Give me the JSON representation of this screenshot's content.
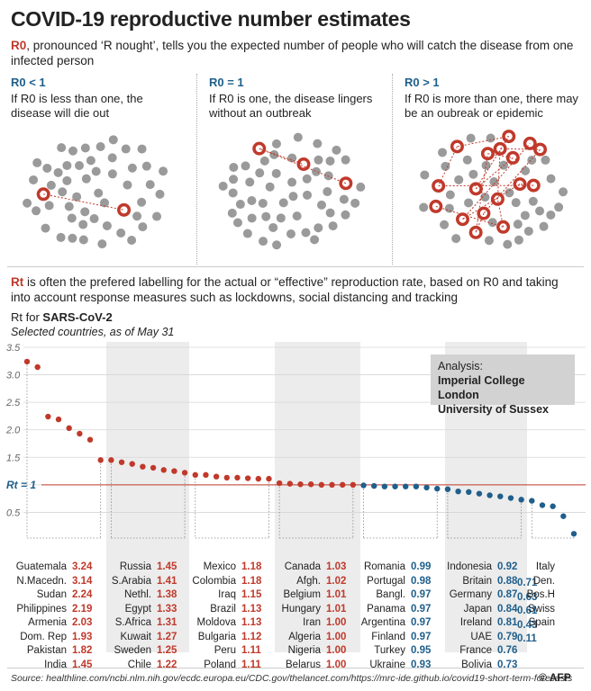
{
  "title": "COVID-19 reproductive number estimates",
  "intro": {
    "r0_label": "R0",
    "rest": ", pronounced ‘R nought’, tells you the expected number of people who will catch the disease from one infected person"
  },
  "scenarios": [
    {
      "heading": "R0 < 1",
      "text": "If R0 is less than one, the disease will die out"
    },
    {
      "heading": "R0 = 1",
      "text": "If R0 is one, the disease lingers without an outbreak"
    },
    {
      "heading": "R0 > 1",
      "text": "If R0 is more than one, there may be an oubreak or epidemic"
    }
  ],
  "rt_intro": {
    "rt_label": "Rt",
    "rest": " is often the prefered labelling for the actual or “effective” reproduction rate, based on R0 and taking into account response measures such as lockdowns, social distancing and tracking"
  },
  "rt_for": {
    "prefix": "Rt for ",
    "virus": "SARS-CoV-2",
    "subtitle": "Selected countries, as of May 31"
  },
  "analysis": {
    "label": "Analysis:",
    "lines": [
      "Imperial College London",
      "University of Sussex"
    ]
  },
  "rt_line_label": "Rt = 1",
  "source": "Source: healthline.com/ncbi.nlm.nih.gov/ecdc.europa.eu/CDC.gov/thelancet.com/https://mrc-ide.github.io/covid19-short-term-forecasts",
  "credit": "© AFP",
  "colors": {
    "above": "#c0392b",
    "below": "#1f5f8b",
    "band": "#ececec",
    "box": "#d2d2d2"
  },
  "chart_data": {
    "type": "scatter",
    "title": "Rt for SARS-CoV-2",
    "subtitle": "Selected countries, as of May 31",
    "y_ticks": [
      "3.5",
      "3.0",
      "2.5",
      "2.0",
      "1.5",
      "Rt = 1",
      "0.5"
    ],
    "ylim": [
      0,
      3.5
    ],
    "reference_line": 1.0,
    "groups": [
      {
        "countries": [
          "Guatemala",
          "N.Macedn.",
          "Sudan",
          "Philippines",
          "Armenia",
          "Dom. Rep",
          "Pakistan",
          "India"
        ],
        "values": [
          3.24,
          3.14,
          2.24,
          2.19,
          2.03,
          1.93,
          1.82,
          1.45
        ]
      },
      {
        "countries": [
          "Russia",
          "S.Arabia",
          "Nethl.",
          "Egypt",
          "S.Africa",
          "Kuwait",
          "Sweden",
          "Chile"
        ],
        "values": [
          1.45,
          1.41,
          1.38,
          1.33,
          1.31,
          1.27,
          1.25,
          1.22
        ]
      },
      {
        "countries": [
          "Mexico",
          "Colombia",
          "Iraq",
          "Brazil",
          "Moldova",
          "Bulgaria",
          "Peru",
          "Poland"
        ],
        "values": [
          1.18,
          1.18,
          1.15,
          1.13,
          1.13,
          1.12,
          1.11,
          1.11
        ]
      },
      {
        "countries": [
          "Canada",
          "Afgh.",
          "Belgium",
          "Hungary",
          "Iran",
          "Algeria",
          "Nigeria",
          "Belarus"
        ],
        "values": [
          1.03,
          1.02,
          1.01,
          1.01,
          1.0,
          1.0,
          1.0,
          1.0
        ]
      },
      {
        "countries": [
          "Romania",
          "Portugal",
          "Bangl.",
          "Panama",
          "Argentina",
          "Finland",
          "Turkey",
          "Ukraine"
        ],
        "values": [
          0.99,
          0.98,
          0.97,
          0.97,
          0.97,
          0.97,
          0.95,
          0.93
        ]
      },
      {
        "countries": [
          "Indonesia",
          "Britain",
          "Germany",
          "Japan",
          "Ireland",
          "UAE",
          "France",
          "Bolivia"
        ],
        "values": [
          0.92,
          0.88,
          0.87,
          0.84,
          0.81,
          0.79,
          0.76,
          0.73
        ]
      },
      {
        "countries": [
          "Italy",
          "Den.",
          "Bos.H",
          "Swiss",
          "Spain"
        ],
        "values": [
          0.71,
          0.63,
          0.61,
          0.43,
          0.11
        ]
      }
    ]
  }
}
